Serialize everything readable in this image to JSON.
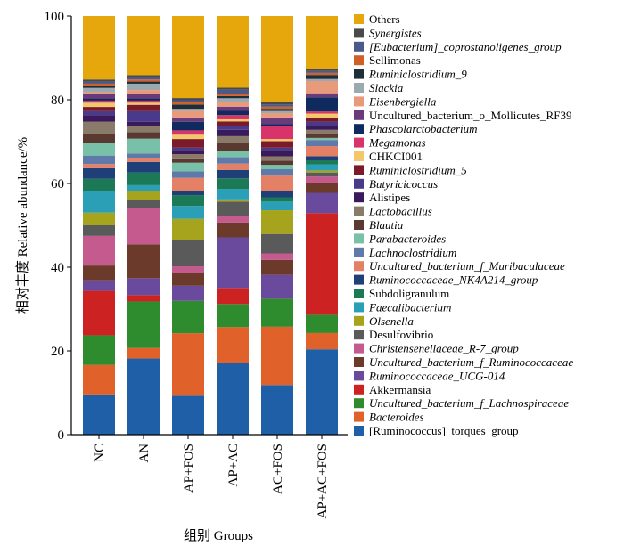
{
  "chart_data": {
    "type": "bar",
    "stacked": true,
    "ylabel": "相对丰度 Relative abundance/%",
    "xlabel": "组别 Groups",
    "ylim": [
      0,
      100
    ],
    "yticks": [
      0,
      20,
      40,
      60,
      80,
      100
    ],
    "categories": [
      "NC",
      "AN",
      "AP+FOS",
      "AP+AC",
      "AC+FOS",
      "AP+AC+FOS"
    ],
    "legend_position": "right",
    "series": [
      {
        "name": "[Ruminococcus]_torques_group",
        "color": "#1f5fa8",
        "values": [
          9.5,
          18.0,
          9.0,
          17.0,
          11.5,
          21.0
        ]
      },
      {
        "name": "Bacteroides",
        "color": "#e0622a",
        "values": [
          7.0,
          2.5,
          14.5,
          8.5,
          13.5,
          4.0
        ]
      },
      {
        "name": "Uncultured_bacterium_f_Lachnospiraceae",
        "color": "#2e8b2e",
        "values": [
          7.0,
          11.0,
          7.5,
          5.5,
          6.5,
          4.5
        ]
      },
      {
        "name": "Akkermansia",
        "color": "#cc2222",
        "values": [
          10.5,
          1.5,
          0.0,
          3.8,
          0.0,
          25.0
        ]
      },
      {
        "name": "Ruminococcaceae_UCG-014",
        "color": "#6a4a9c",
        "values": [
          2.5,
          4.0,
          3.5,
          12.0,
          5.5,
          5.0
        ]
      },
      {
        "name": "Uncultured_bacterium_f_Ruminococcaceae",
        "color": "#6b3a2a",
        "values": [
          3.5,
          8.0,
          3.0,
          3.5,
          3.5,
          2.5
        ]
      },
      {
        "name": "Christensenellaceae_R-7_group",
        "color": "#c45a8e",
        "values": [
          7.0,
          8.5,
          1.5,
          1.5,
          1.5,
          1.5
        ]
      },
      {
        "name": "Desulfovibrio",
        "color": "#5a5a5a",
        "values": [
          2.5,
          2.0,
          6.0,
          3.5,
          4.5,
          1.0
        ]
      },
      {
        "name": "Olsenella",
        "color": "#a6a31c",
        "values": [
          3.0,
          2.0,
          5.0,
          0.5,
          5.5,
          0.5
        ]
      },
      {
        "name": "Faecalibacterium",
        "color": "#2a9fb5",
        "values": [
          5.0,
          1.5,
          3.0,
          2.5,
          2.0,
          1.5
        ]
      },
      {
        "name": "Subdoligranulum",
        "color": "#1b7a55",
        "values": [
          3.0,
          3.0,
          2.5,
          2.5,
          1.0,
          1.0
        ]
      },
      {
        "name": "Ruminococcaceae_NK4A214_group",
        "color": "#1e3f78",
        "values": [
          2.5,
          2.5,
          1.0,
          2.0,
          1.5,
          1.0
        ]
      },
      {
        "name": "Uncultured_bacterium_f_Muribaculaceae",
        "color": "#e38066",
        "values": [
          1.0,
          1.0,
          3.0,
          1.5,
          3.5,
          2.5
        ]
      },
      {
        "name": "Lachnoclostridium",
        "color": "#5f7aaa",
        "values": [
          2.0,
          1.0,
          1.5,
          1.5,
          1.5,
          1.5
        ]
      },
      {
        "name": "Parabacteroides",
        "color": "#78c0a8",
        "values": [
          3.0,
          3.5,
          2.0,
          1.5,
          1.0,
          0.5
        ]
      },
      {
        "name": "Blautia",
        "color": "#5a3a30",
        "values": [
          2.0,
          1.5,
          1.0,
          2.0,
          1.0,
          1.0
        ]
      },
      {
        "name": "Lactobacillus",
        "color": "#8a7a6a",
        "values": [
          3.0,
          1.5,
          1.0,
          1.5,
          1.0,
          1.0
        ]
      },
      {
        "name": "Alistipes",
        "color": "#3a1a5a",
        "values": [
          1.5,
          1.0,
          1.0,
          1.5,
          1.5,
          1.0
        ]
      },
      {
        "name": "Butyricicoccus",
        "color": "#4a3a8a",
        "values": [
          1.0,
          2.5,
          0.5,
          1.0,
          0.5,
          1.0
        ]
      },
      {
        "name": "Ruminiclostridium_5",
        "color": "#7a1a2a",
        "values": [
          1.0,
          1.5,
          2.0,
          1.0,
          1.5,
          1.0
        ]
      },
      {
        "name": "CHKCI001",
        "color": "#f2c86a",
        "values": [
          1.0,
          0.5,
          1.0,
          0.5,
          0.5,
          1.0
        ]
      },
      {
        "name": "Megamonas",
        "color": "#d8336a",
        "values": [
          0.5,
          0.5,
          1.0,
          1.0,
          3.0,
          0.5
        ]
      },
      {
        "name": "Phascolarctobacterium",
        "color": "#0f2a5e",
        "values": [
          0.5,
          0.5,
          2.0,
          1.0,
          0.5,
          3.5
        ]
      },
      {
        "name": "Uncultured_bacterium_o_Mollicutes_RF39",
        "color": "#6a3a7a",
        "values": [
          1.0,
          1.0,
          1.0,
          1.0,
          1.5,
          1.0
        ]
      },
      {
        "name": "Eisenbergiella",
        "color": "#e99a7a",
        "values": [
          0.5,
          1.0,
          1.5,
          1.0,
          1.0,
          3.0
        ]
      },
      {
        "name": "Slackia",
        "color": "#9aaab0",
        "values": [
          1.0,
          1.5,
          0.5,
          1.0,
          0.5,
          0.5
        ]
      },
      {
        "name": "Ruminiclostridium_9",
        "color": "#1f2f3a",
        "values": [
          0.5,
          0.5,
          1.0,
          0.5,
          0.5,
          1.0
        ]
      },
      {
        "name": "Sellimonas",
        "color": "#d0602a",
        "values": [
          0.5,
          0.5,
          0.5,
          0.5,
          0.5,
          0.5
        ]
      },
      {
        "name": "[Eubacterium]_coprostanoligenes_group",
        "color": "#4a5a8a",
        "values": [
          0.5,
          0.5,
          0.5,
          1.0,
          0.5,
          0.5
        ]
      },
      {
        "name": "Synergistes",
        "color": "#4a4a4a",
        "values": [
          0.5,
          0.5,
          0.5,
          0.5,
          0.5,
          0.5
        ]
      },
      {
        "name": "Others",
        "color": "#e6a70c",
        "values": [
          15.0,
          14.0,
          19.0,
          17.0,
          20.0,
          13.0
        ]
      }
    ],
    "legend_italic": [
      false,
      true,
      true,
      false,
      true,
      true,
      true,
      false,
      true,
      true,
      false,
      true,
      true,
      false,
      true,
      true,
      true,
      true,
      true,
      true,
      false,
      true,
      true,
      false,
      true,
      true,
      true,
      false,
      true,
      true,
      false
    ],
    "legend_order": [
      "Others",
      "Synergistes",
      "[Eubacterium]_coprostanoligenes_group",
      "Sellimonas",
      "Ruminiclostridium_9",
      "Slackia",
      "Eisenbergiella",
      "Uncultured_bacterium_o_Mollicutes_RF39",
      "Phascolarctobacterium",
      "Megamonas",
      "CHKCI001",
      "Ruminiclostridium_5",
      "Butyricicoccus",
      "Alistipes",
      "Lactobacillus",
      "Blautia",
      "Parabacteroides",
      "Lachnoclostridium",
      "Uncultured_bacterium_f_Muribaculaceae",
      "Ruminococcaceae_NK4A214_group",
      "Subdoligranulum",
      "Faecalibacterium",
      "Olsenella",
      "Desulfovibrio",
      "Christensenellaceae_R-7_group",
      "Uncultured_bacterium_f_Ruminococcaceae",
      "Ruminococcaceae_UCG-014",
      "Akkermansia",
      "Uncultured_bacterium_f_Lachnospiraceae",
      "Bacteroides",
      "[Ruminococcus]_torques_group"
    ]
  }
}
